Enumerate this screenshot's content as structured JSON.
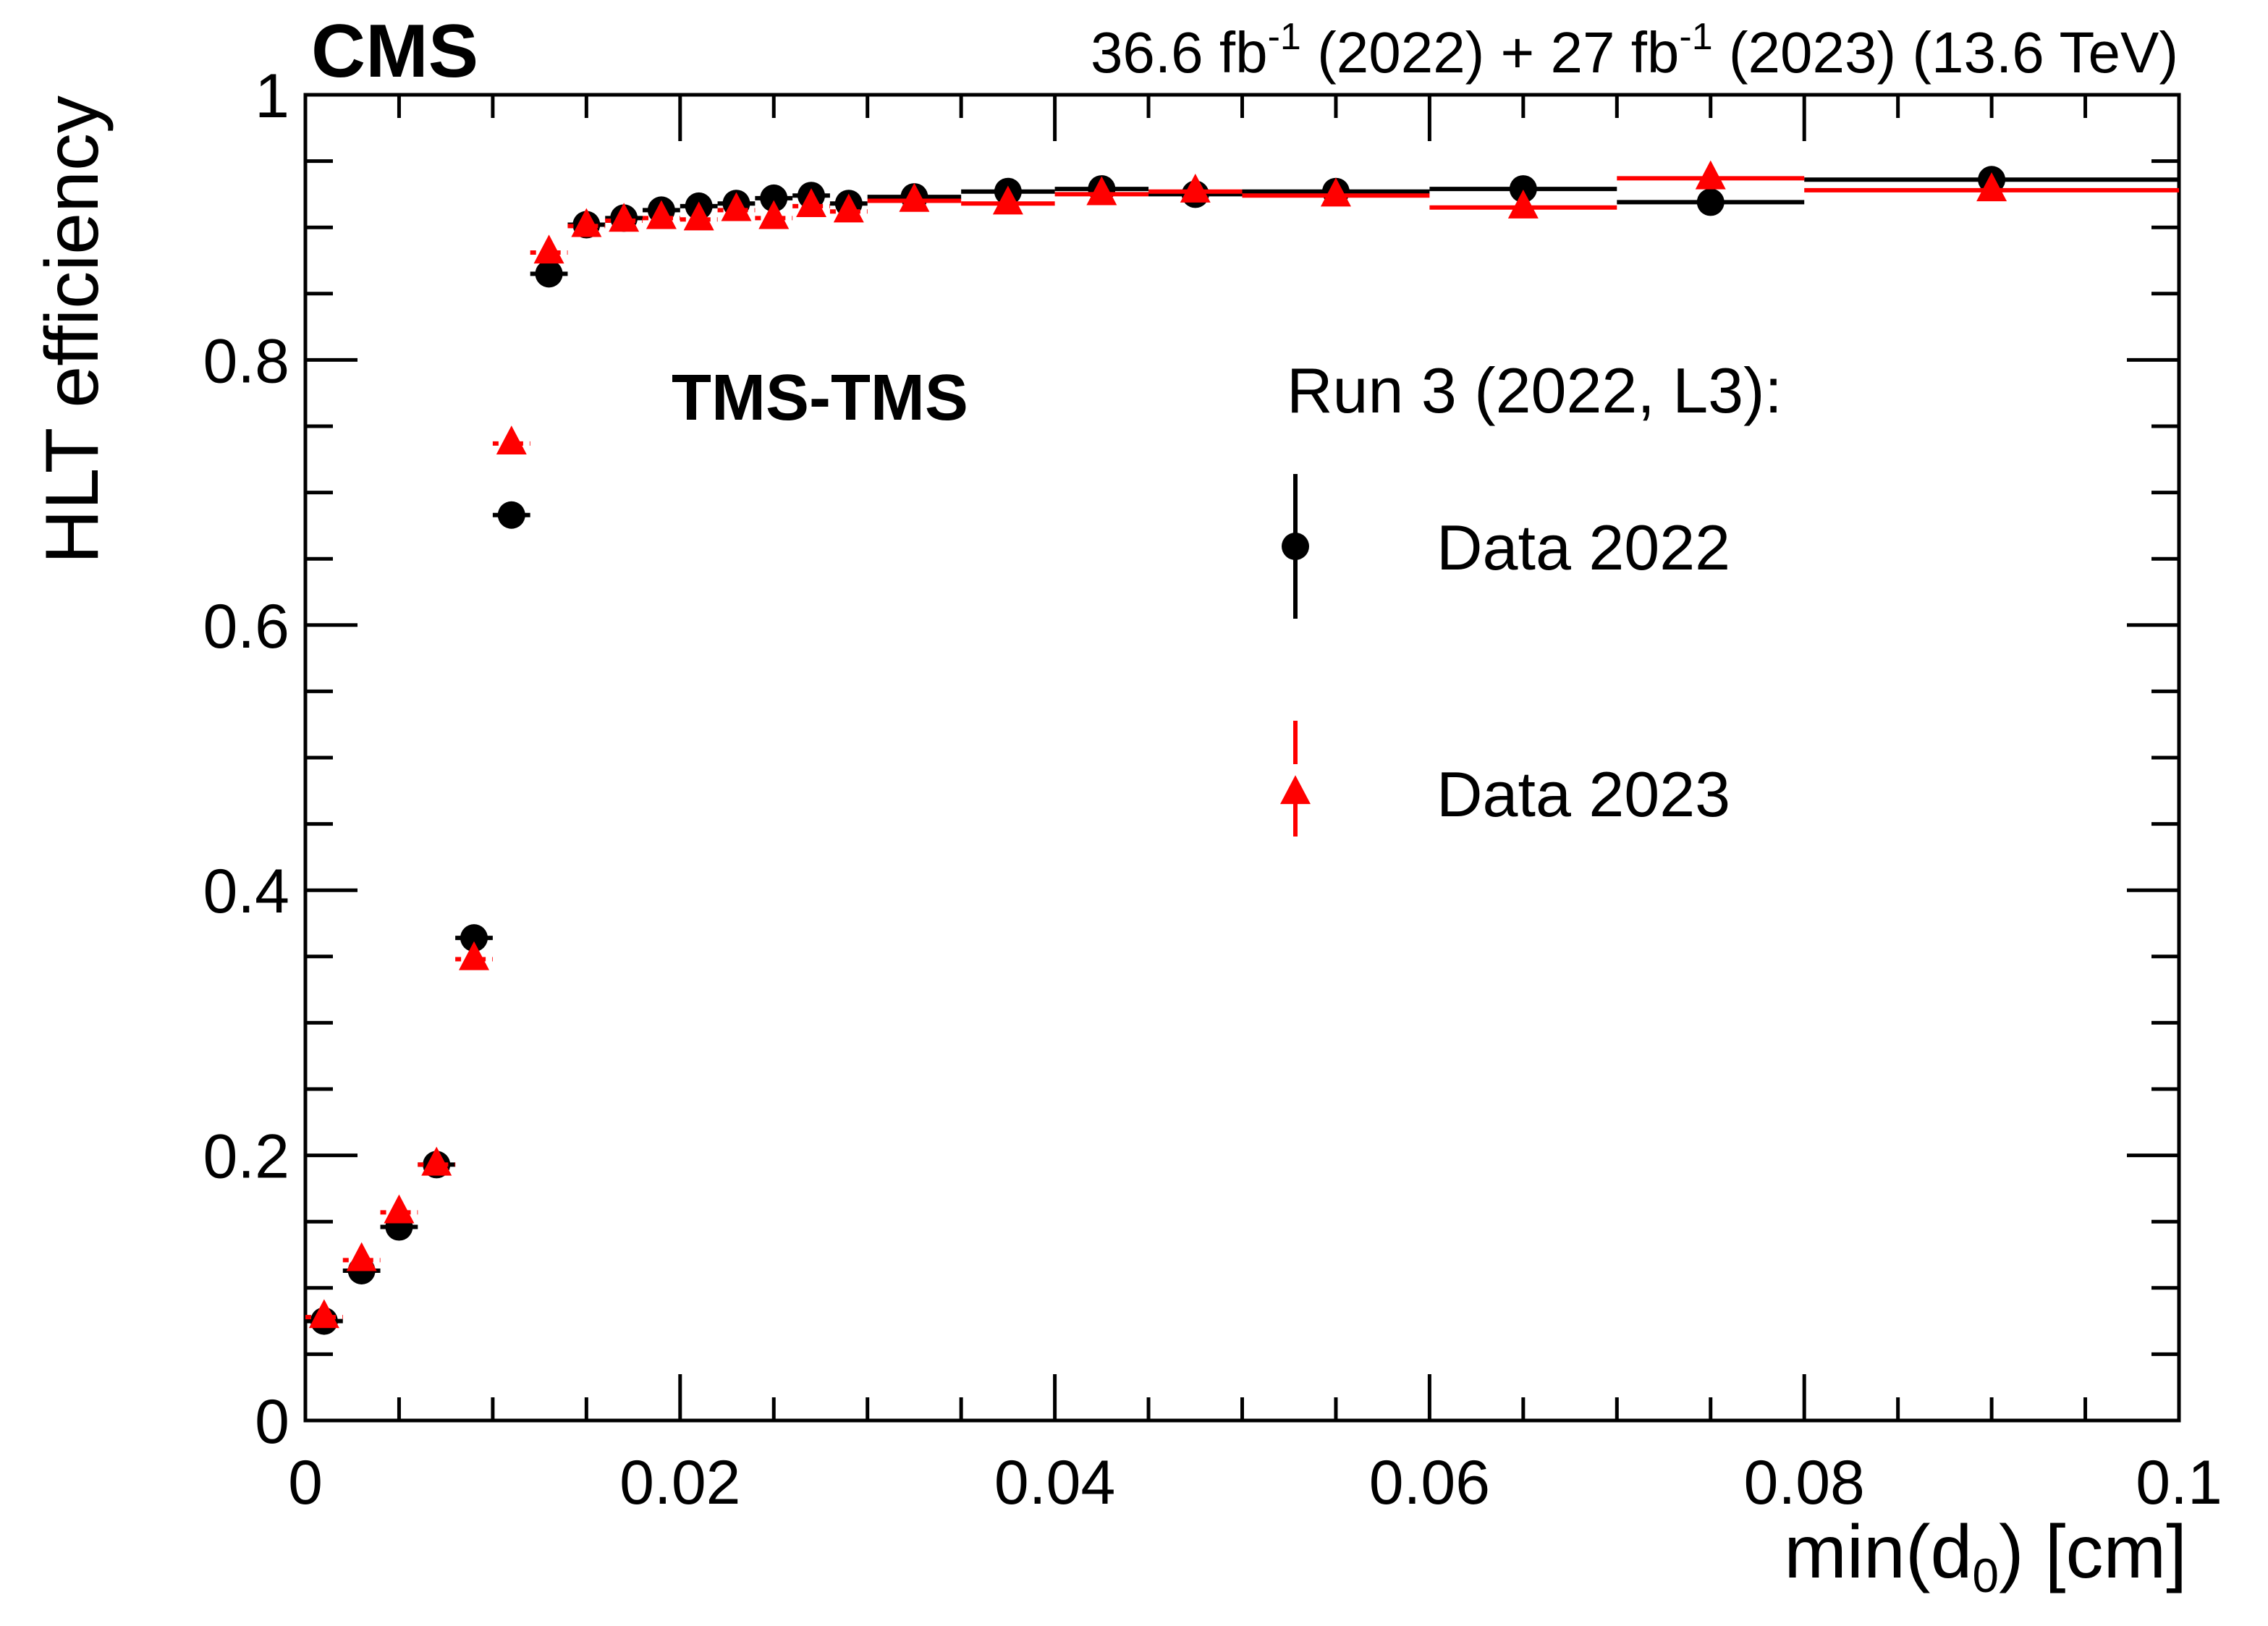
{
  "header": {
    "experiment": "CMS",
    "lumi_text": {
      "part1": "36.6 fb",
      "sup1": "-1",
      "part2": " (2022) + 27 fb",
      "sup2": "-1",
      "part3": " (2023) (13.6 TeV)"
    }
  },
  "chart_data": {
    "type": "scatter",
    "title": "",
    "xlabel": {
      "main": "min(d",
      "sub": "0",
      "tail": ") [cm]"
    },
    "ylabel": "HLT efficiency",
    "xlim": [
      0,
      0.1
    ],
    "ylim": [
      0,
      1
    ],
    "x_ticks": [
      0,
      0.02,
      0.04,
      0.06,
      0.08,
      0.1
    ],
    "x_tick_labels": [
      "0",
      "0.02",
      "0.04",
      "0.06",
      "0.08",
      "0.1"
    ],
    "y_ticks": [
      0,
      0.2,
      0.4,
      0.6,
      0.8,
      1
    ],
    "y_tick_labels": [
      "0",
      "0.2",
      "0.4",
      "0.6",
      "0.8",
      "1"
    ],
    "grid": false,
    "category_label": "TMS-TMS",
    "legend": {
      "title": "Run 3 (2022, L3):",
      "position": "upper-right"
    },
    "series": [
      {
        "name": "Data 2022",
        "marker": "circle",
        "color": "#000000",
        "bins": [
          [
            0.0,
            0.002,
            0.075
          ],
          [
            0.002,
            0.004,
            0.113
          ],
          [
            0.004,
            0.006,
            0.146
          ],
          [
            0.006,
            0.008,
            0.193
          ],
          [
            0.008,
            0.01,
            0.364
          ],
          [
            0.01,
            0.012,
            0.683
          ],
          [
            0.012,
            0.014,
            0.865
          ],
          [
            0.014,
            0.016,
            0.902
          ],
          [
            0.016,
            0.018,
            0.907
          ],
          [
            0.018,
            0.02,
            0.913
          ],
          [
            0.02,
            0.022,
            0.916
          ],
          [
            0.022,
            0.024,
            0.918
          ],
          [
            0.024,
            0.026,
            0.922
          ],
          [
            0.026,
            0.028,
            0.924
          ],
          [
            0.028,
            0.03,
            0.918
          ],
          [
            0.03,
            0.035,
            0.923
          ],
          [
            0.035,
            0.04,
            0.927
          ],
          [
            0.04,
            0.045,
            0.929
          ],
          [
            0.045,
            0.05,
            0.925
          ],
          [
            0.05,
            0.06,
            0.927
          ],
          [
            0.06,
            0.07,
            0.929
          ],
          [
            0.07,
            0.08,
            0.919
          ],
          [
            0.08,
            0.1,
            0.936
          ]
        ]
      },
      {
        "name": "Data 2023",
        "marker": "triangle",
        "color": "#ff0000",
        "bins": [
          [
            0.0,
            0.002,
            0.078
          ],
          [
            0.002,
            0.004,
            0.121
          ],
          [
            0.004,
            0.006,
            0.157
          ],
          [
            0.006,
            0.008,
            0.193
          ],
          [
            0.008,
            0.01,
            0.348
          ],
          [
            0.01,
            0.012,
            0.737
          ],
          [
            0.012,
            0.014,
            0.881
          ],
          [
            0.014,
            0.016,
            0.901
          ],
          [
            0.016,
            0.018,
            0.905
          ],
          [
            0.018,
            0.02,
            0.907
          ],
          [
            0.02,
            0.022,
            0.906
          ],
          [
            0.022,
            0.024,
            0.913
          ],
          [
            0.024,
            0.026,
            0.907
          ],
          [
            0.026,
            0.028,
            0.916
          ],
          [
            0.028,
            0.03,
            0.912
          ],
          [
            0.03,
            0.035,
            0.92
          ],
          [
            0.035,
            0.04,
            0.918
          ],
          [
            0.04,
            0.045,
            0.925
          ],
          [
            0.045,
            0.05,
            0.927
          ],
          [
            0.05,
            0.06,
            0.924
          ],
          [
            0.06,
            0.07,
            0.915
          ],
          [
            0.07,
            0.08,
            0.937
          ],
          [
            0.08,
            0.1,
            0.928
          ]
        ]
      }
    ]
  }
}
